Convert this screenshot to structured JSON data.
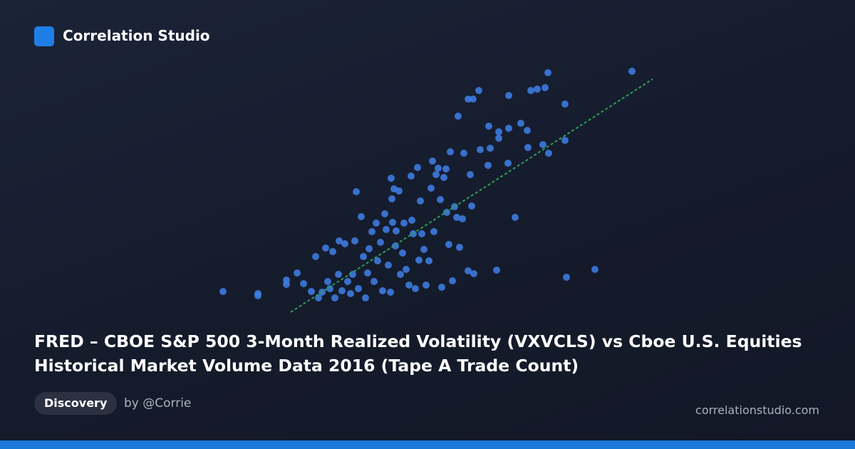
{
  "brand": "Correlation Studio",
  "tag": "Discovery",
  "author": "by @Corrie",
  "site": "correlationstudio.com",
  "chart_data": {
    "type": "scatter",
    "title": "FRED – CBOE S&P 500 3-Month Realized Volatility (VXVCLS) vs Cboe U.S. Equities Historical Market Volume Data 2016 (Tape A Trade Count)",
    "color": "#3f7fe8",
    "xlim": [
      0,
      620
    ],
    "ylim": [
      0,
      350
    ],
    "x": [
      13,
      62,
      62,
      102,
      102,
      117,
      126,
      137,
      143,
      147,
      152,
      157,
      160,
      163,
      167,
      170,
      175,
      176,
      180,
      184,
      188,
      192,
      195,
      198,
      200,
      203,
      207,
      210,
      213,
      216,
      218,
      222,
      225,
      228,
      230,
      234,
      237,
      240,
      242,
      245,
      248,
      249,
      250,
      251,
      253,
      255,
      256,
      260,
      262,
      265,
      267,
      270,
      274,
      277,
      278,
      280,
      283,
      286,
      288,
      290,
      292,
      295,
      298,
      302,
      305,
      307,
      309,
      312,
      315,
      318,
      320,
      323,
      326,
      327,
      330,
      332,
      335,
      338,
      341,
      343,
      345,
      349,
      351,
      357,
      357,
      360,
      362,
      364,
      365,
      372,
      374,
      385,
      386,
      388,
      397,
      400,
      400,
      413,
      414,
      414,
      423,
      431,
      440,
      441,
      445,
      454,
      462,
      465,
      469,
      470,
      493,
      493,
      495,
      535,
      587
    ],
    "values": [
      31,
      28,
      25,
      47,
      41,
      57,
      42,
      31,
      80,
      22,
      30,
      92,
      45,
      35,
      87,
      22,
      55,
      102,
      32,
      98,
      45,
      28,
      55,
      102,
      171,
      35,
      136,
      80,
      22,
      57,
      91,
      115,
      45,
      127,
      74,
      100,
      32,
      140,
      118,
      68,
      30,
      190,
      161,
      128,
      175,
      95,
      116,
      172,
      55,
      85,
      127,
      62,
      40,
      193,
      131,
      112,
      35,
      205,
      75,
      158,
      112,
      90,
      40,
      74,
      176,
      214,
      115,
      195,
      204,
      160,
      37,
      191,
      203,
      142,
      97,
      227,
      46,
      150,
      135,
      277,
      93,
      133,
      225,
      301,
      60,
      195,
      151,
      301,
      56,
      313,
      230,
      208,
      263,
      232,
      61,
      255,
      246,
      211,
      306,
      260,
      135,
      267,
      257,
      233,
      313,
      315,
      237,
      317,
      338,
      225,
      294,
      243,
      51,
      62,
      340
    ],
    "trendline": {
      "color": "#2f9e5a",
      "x": [
        108,
        616
      ],
      "values": [
        2,
        329
      ]
    }
  }
}
